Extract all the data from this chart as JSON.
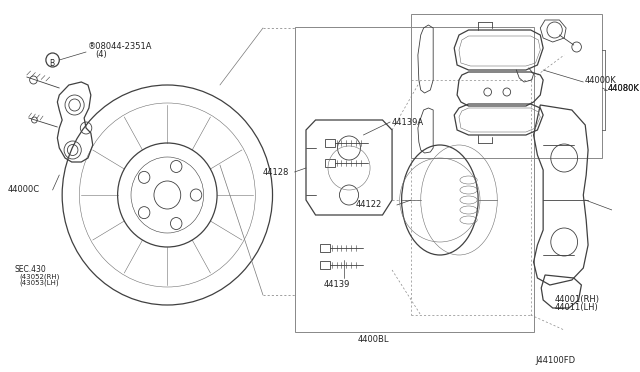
{
  "background_color": "#f5f5f5",
  "line_color": [
    80,
    80,
    80
  ],
  "thin_color": [
    120,
    120,
    120
  ],
  "figsize": [
    6.4,
    3.72
  ],
  "dpi": 100,
  "diagram_id": "J44100FD",
  "labels": {
    "bolt": "B08044-2351A\n  (4)",
    "hub": "44000C",
    "sec": "SEC.430\n(43052(RH)\n(43053(LH)",
    "pin_top": "44139A",
    "pin_mid": "44128",
    "pin_bot": "44139",
    "piston": "44122",
    "pad_bot": "4400BL",
    "pad_k": "44000K",
    "shim": "44080K",
    "caliper_rh": "44001(RH)\n44011(LH)"
  }
}
